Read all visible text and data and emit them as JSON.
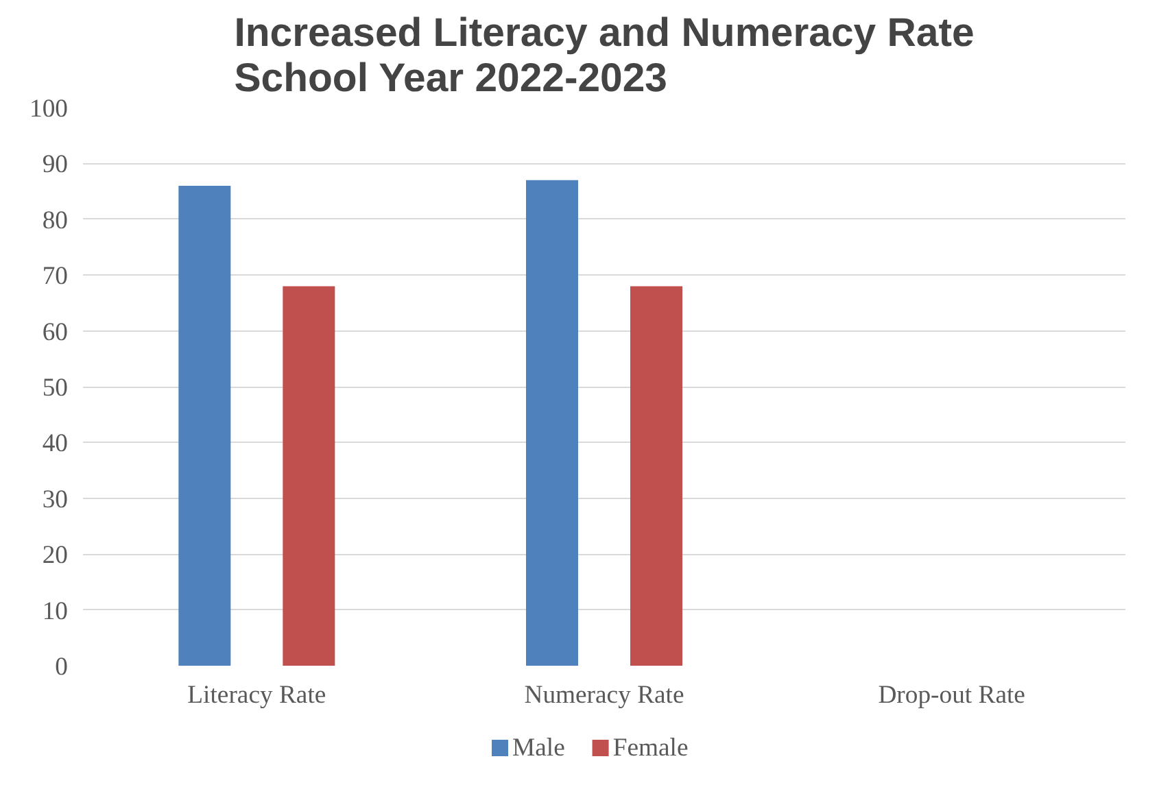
{
  "chart_data": {
    "type": "bar",
    "title": "Increased Literacy and Numeracy Rate\nSchool Year 2022-2023",
    "categories": [
      "Literacy Rate",
      "Numeracy Rate",
      "Drop-out Rate"
    ],
    "series": [
      {
        "name": "Male",
        "color": "#4f81bd",
        "values": [
          86,
          87,
          null
        ]
      },
      {
        "name": "Female",
        "color": "#c0504d",
        "values": [
          68,
          68,
          null
        ]
      }
    ],
    "ylim": [
      0,
      100
    ],
    "yticks": [
      0,
      10,
      20,
      30,
      40,
      50,
      60,
      70,
      80,
      90,
      100
    ],
    "grid": "y",
    "legend": "bottom"
  }
}
